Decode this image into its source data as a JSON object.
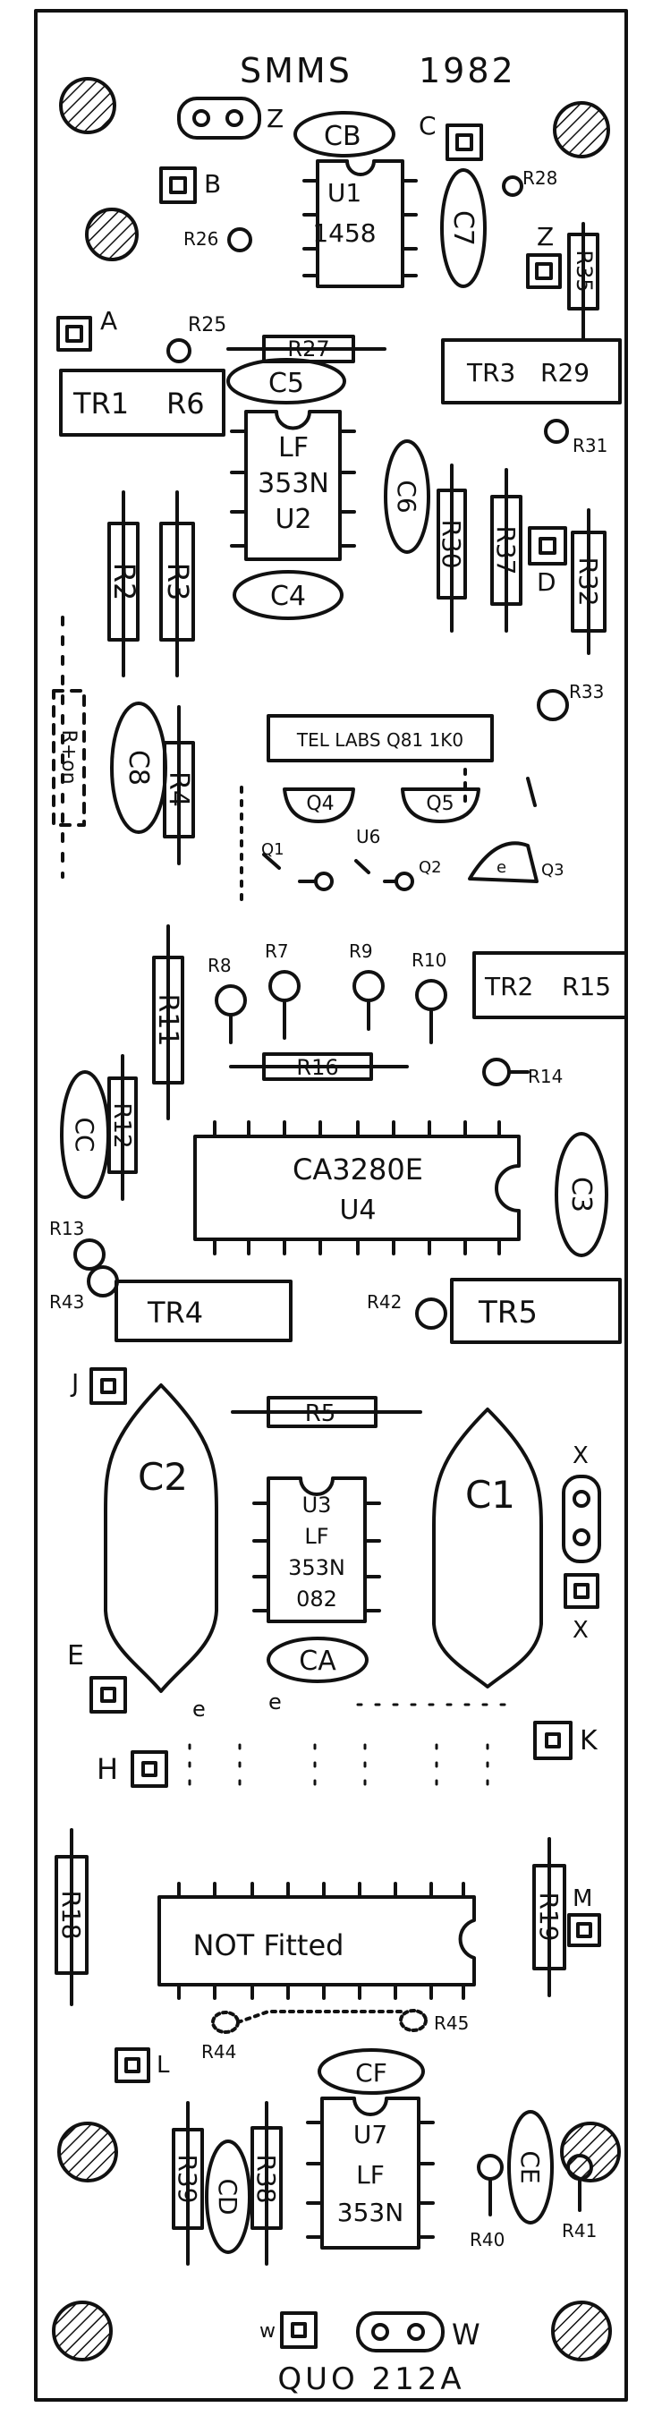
{
  "title": {
    "left": "SMMS",
    "right": "1982"
  },
  "footer": "QUO 212A",
  "ics": {
    "u1": [
      "U1",
      "1458"
    ],
    "u2": [
      "LF",
      "353N",
      "U2"
    ],
    "u3": [
      "U3",
      "LF",
      "353N",
      "082"
    ],
    "u4": [
      "CA3280E",
      "U4"
    ],
    "u7": [
      "U7",
      "LF",
      "353N"
    ],
    "not_fitted": "NOT Fitted",
    "tel_labs": "TEL LABS Q81 1K0",
    "u6": "U6"
  },
  "pads": {
    "Z_top": "Z",
    "C": "C",
    "B": "B",
    "A": "A",
    "Z_side": "Z",
    "D": "D",
    "J": "J",
    "X_top": "X",
    "X_bottom": "X",
    "E": "E",
    "H": "H",
    "K": "K",
    "M": "M",
    "L": "L",
    "w": "w",
    "W": "W"
  },
  "caps": {
    "CB": "CB",
    "C7": "C7",
    "C5": "C5",
    "C4": "C4",
    "C6": "C6",
    "C8": "C8",
    "CC": "CC",
    "C3": "C3",
    "C2": "C2",
    "C1": "C1",
    "CA": "CA",
    "CF": "CF",
    "CD": "CD",
    "CE": "CE"
  },
  "resistors": {
    "R2": "R2",
    "R3": "R3",
    "R4": "R4",
    "R11": "R11",
    "R12": "R12",
    "R18": "R18",
    "R19": "R19",
    "R30": "R30",
    "R37": "R37",
    "R32": "R32",
    "R35": "R35",
    "R39": "R39",
    "R38": "R38",
    "R27": "R27",
    "R16": "R16",
    "R5": "R5",
    "R_on": "R+on"
  },
  "trimmers": {
    "TR1": "TR1",
    "R6": "R6",
    "TR3": "TR3",
    "R29": "R29",
    "TR2": "TR2",
    "R15": "R15",
    "TR4": "TR4",
    "TR5": "TR5"
  },
  "refs": {
    "R25": "R25",
    "R26": "R26",
    "R28": "R28",
    "R31": "R31",
    "R33": "R33",
    "R8": "R8",
    "R7": "R7",
    "R9": "R9",
    "R10": "R10",
    "R14": "R14",
    "R13": "R13",
    "R43": "R43",
    "R42": "R42",
    "R44": "R44",
    "R45": "R45",
    "R40": "R40",
    "R41": "R41"
  },
  "transistors": {
    "Q4": "Q4",
    "Q5": "Q5",
    "Q1": "Q1",
    "Q2": "Q2",
    "Q3": "Q3"
  },
  "misc": {
    "e1": "e",
    "e2": "e",
    "e3": "e"
  }
}
